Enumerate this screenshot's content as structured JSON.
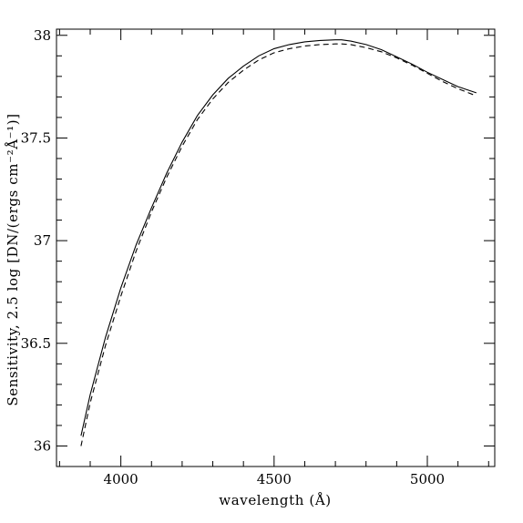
{
  "chart_data": {
    "type": "line",
    "title": "",
    "xlabel": "wavelength (Å)",
    "ylabel": "Sensitivity,  2.5 log [DN/(ergs cm⁻²Å⁻¹)]",
    "xlim": [
      3790,
      5220
    ],
    "ylim": [
      35.9,
      38.03
    ],
    "x_ticks_major": [
      4000,
      4500,
      5000
    ],
    "x_tick_labels": [
      "4000",
      "4500",
      "5000"
    ],
    "y_ticks_major": [
      36,
      36.5,
      37,
      37.5,
      38
    ],
    "y_tick_labels": [
      "36",
      "36.5",
      "37",
      "37.5",
      "38"
    ],
    "x_minor_step": 100,
    "y_minor_step": 0.1,
    "grid": false,
    "legend": false,
    "series": [
      {
        "style": "solid",
        "color": "#000000",
        "x": [
          3870,
          3900,
          3950,
          4000,
          4050,
          4100,
          4150,
          4200,
          4250,
          4300,
          4350,
          4400,
          4450,
          4500,
          4550,
          4600,
          4650,
          4700,
          4720,
          4750,
          4800,
          4850,
          4900,
          4950,
          5000,
          5050,
          5100,
          5160
        ],
        "y": [
          36.05,
          36.25,
          36.53,
          36.77,
          36.98,
          37.16,
          37.33,
          37.48,
          37.61,
          37.71,
          37.79,
          37.85,
          37.9,
          37.935,
          37.955,
          37.968,
          37.975,
          37.978,
          37.978,
          37.972,
          37.955,
          37.93,
          37.895,
          37.86,
          37.82,
          37.785,
          37.75,
          37.72
        ]
      },
      {
        "style": "dashed",
        "color": "#000000",
        "x": [
          3870,
          3900,
          3950,
          4000,
          4050,
          4100,
          4150,
          4200,
          4250,
          4300,
          4350,
          4400,
          4450,
          4500,
          4550,
          4600,
          4650,
          4700,
          4720,
          4750,
          4800,
          4850,
          4900,
          4950,
          5000,
          5050,
          5100,
          5160
        ],
        "y": [
          36.0,
          36.21,
          36.49,
          36.73,
          36.95,
          37.14,
          37.31,
          37.46,
          37.59,
          37.69,
          37.77,
          37.83,
          37.88,
          37.915,
          37.935,
          37.948,
          37.955,
          37.958,
          37.958,
          37.955,
          37.94,
          37.92,
          37.89,
          37.855,
          37.815,
          37.775,
          37.74,
          37.705
        ]
      }
    ]
  }
}
